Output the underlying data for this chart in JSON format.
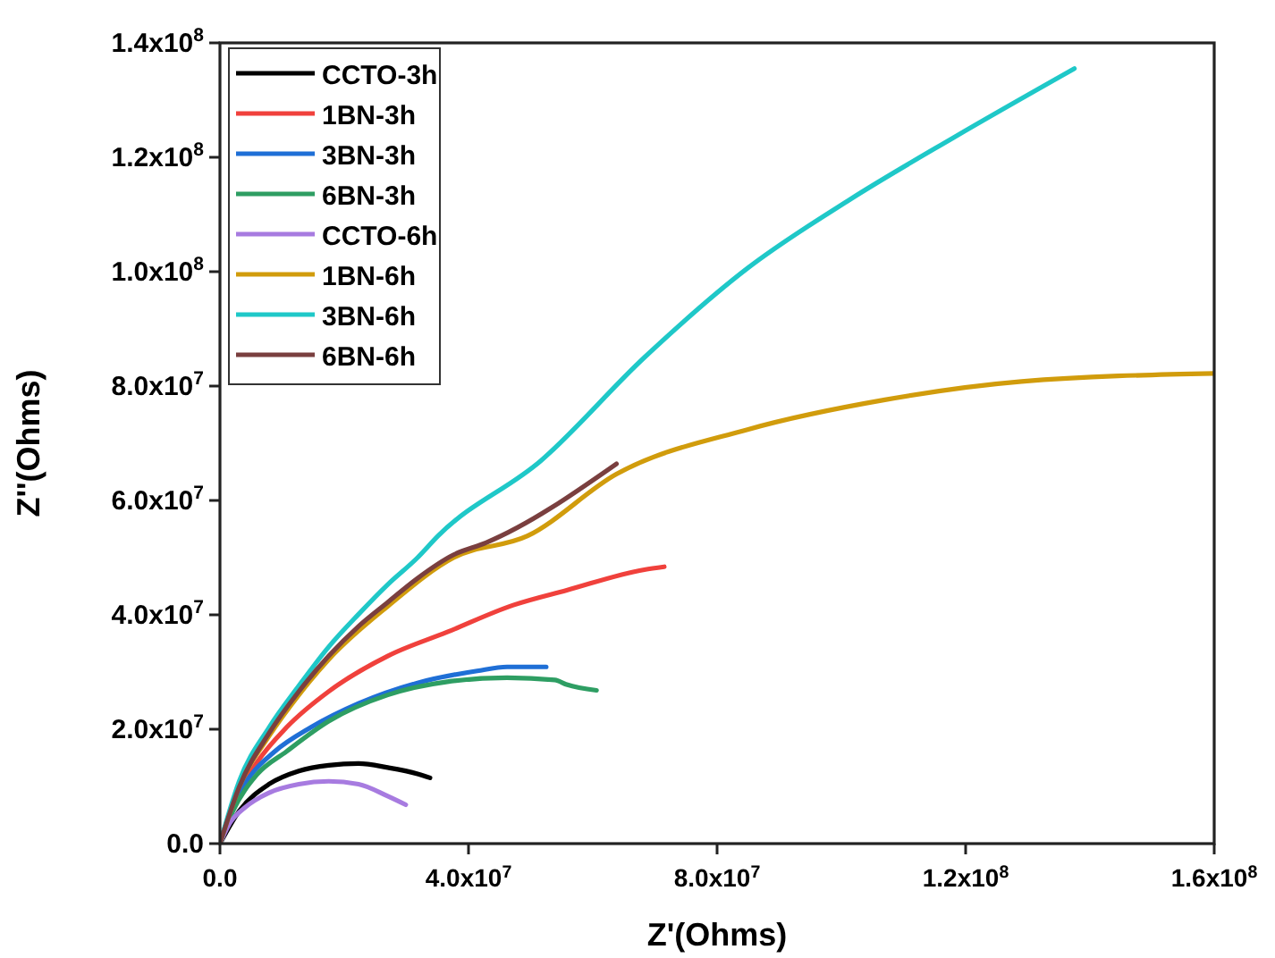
{
  "chart_data": {
    "type": "line",
    "xlabel": "Z'(Ohms)",
    "ylabel": "Z''(Ohms)",
    "xlim": [
      0,
      160000000.0
    ],
    "ylim": [
      0,
      140000000.0
    ],
    "xticks": [
      {
        "value": 0,
        "label": "0.0"
      },
      {
        "value": 40000000.0,
        "label": "4.0x10$^{7}$"
      },
      {
        "value": 80000000.0,
        "label": "8.0x10$^{7}$"
      },
      {
        "value": 120000000.0,
        "label": "1.2x10$^{8}$"
      },
      {
        "value": 160000000.0,
        "label": "1.6x10$^{8}$"
      }
    ],
    "yticks": [
      {
        "value": 0,
        "label": "0.0"
      },
      {
        "value": 20000000.0,
        "label": "2.0x10$^{7}$"
      },
      {
        "value": 40000000.0,
        "label": "4.0x10$^{7}$"
      },
      {
        "value": 60000000.0,
        "label": "6.0x10$^{7}$"
      },
      {
        "value": 80000000.0,
        "label": "8.0x10$^{7}$"
      },
      {
        "value": 100000000.0,
        "label": "1.0x10$^{8}$"
      },
      {
        "value": 120000000.0,
        "label": "1.2x10$^{8}$"
      },
      {
        "value": 140000000.0,
        "label": "1.4x10$^{8}$"
      }
    ],
    "grid": false,
    "legend": "top left",
    "line_style": "solid",
    "series": [
      {
        "name": "CCTO-3h",
        "color": "#000000",
        "x": [
          0,
          3100000.0,
          7900000.0,
          12700000.0,
          17500000.0,
          22300000.0,
          27000000.0,
          31800000.0,
          33800000.0
        ],
        "values": [
          0,
          5700000.0,
          10400000.0,
          12700000.0,
          13700000.0,
          14000000.0,
          13300000.0,
          12200000.0,
          11500000.0
        ]
      },
      {
        "name": "1BN-3h",
        "color": "#f0413c",
        "x": [
          0,
          2100000.0,
          5900000.0,
          10700000.0,
          17500000.0,
          27000000.0,
          36600000.0,
          47200000.0,
          55800000.0,
          68300000.0,
          71500000.0
        ],
        "values": [
          0,
          6800000.0,
          14100000.0,
          20300000.0,
          26600000.0,
          32800000.0,
          37000000.0,
          41700000.0,
          44300000.0,
          47900000.0,
          48400000.0
        ]
      },
      {
        "name": "3BN-3h",
        "color": "#1f6fd6",
        "x": [
          0,
          2100000.0,
          5000000.0,
          8800000.0,
          14600000.0,
          22300000.0,
          31800000.0,
          41400000.0,
          46200000.0,
          52500000.0
        ],
        "values": [
          0,
          6800000.0,
          12000000.0,
          16100000.0,
          20300000.0,
          24500000.0,
          28100000.0,
          30200000.0,
          30900000.0,
          30900000.0
        ]
      },
      {
        "name": "6BN-3h",
        "color": "#2e9e63",
        "x": [
          0,
          2100000.0,
          5900000.0,
          10700000.0,
          17500000.0,
          27000000.0,
          36600000.0,
          46200000.0,
          53900000.0,
          55800000.0,
          60600000.0
        ],
        "values": [
          0,
          5700000.0,
          12000000.0,
          16100000.0,
          21400000.0,
          26000000.0,
          28300000.0,
          29000000.0,
          28600000.0,
          27800000.0,
          26800000.0
        ]
      },
      {
        "name": "CCTO-6h",
        "color": "#a77be0",
        "x": [
          0,
          1600000.0,
          4000000.0,
          7900000.0,
          12700000.0,
          17500000.0,
          22300000.0,
          27000000.0,
          29900000.0
        ],
        "values": [
          0,
          3600000.0,
          6300000.0,
          8900000.0,
          10400000.0,
          10900000.0,
          10400000.0,
          8300000.0,
          6800000.0
        ]
      },
      {
        "name": "1BN-6h",
        "color": "#d19c0c",
        "x": [
          0,
          3100000.0,
          7900000.0,
          12700000.0,
          17500000.0,
          27000000.0,
          37600000.0,
          49500000.0,
          63800000.0,
          84900000.0,
          107000000.0,
          129000000.0,
          160000000.0
        ],
        "values": [
          0,
          9900000.0,
          18800000.0,
          26000000.0,
          32200000.0,
          41500000.0,
          50000000.0,
          53800000.0,
          64600000.0,
          72400000.0,
          77600000.0,
          80800000.0,
          82200000.0
        ]
      },
      {
        "name": "3BN-6h",
        "color": "#1fc8c8",
        "x": [
          0,
          3100000.0,
          7900000.0,
          12700000.0,
          17500000.0,
          22300000.0,
          27000000.0,
          31800000.0,
          35100000.0,
          51700000.0,
          68300000.0,
          84900000.0,
          101500000.0,
          118000000.0,
          137500000.0
        ],
        "values": [
          0,
          10900000.0,
          20300000.0,
          27600000.0,
          34400000.0,
          40100000.0,
          45300000.0,
          50000000.0,
          53800000.0,
          67000000.0,
          85000000.0,
          100600000.0,
          112700000.0,
          123400000.0,
          135500000.0
        ]
      },
      {
        "name": "6BN-6h",
        "color": "#7a3f3f",
        "x": [
          0,
          3100000.0,
          7900000.0,
          12700000.0,
          17500000.0,
          22300000.0,
          27000000.0,
          31800000.0,
          37600000.0,
          42800000.0,
          63800000.0
        ],
        "values": [
          0,
          9900000.0,
          19300000.0,
          26600000.0,
          32800000.0,
          38000000.0,
          42200000.0,
          46400000.0,
          50500000.0,
          52600000.0,
          66400000.0
        ]
      }
    ]
  }
}
